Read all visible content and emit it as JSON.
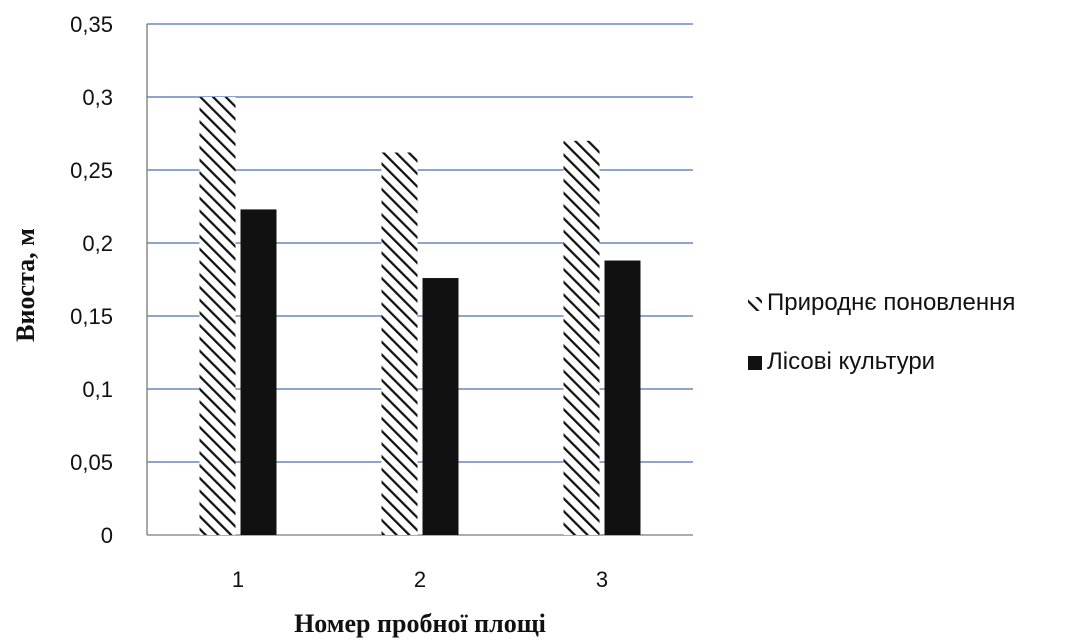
{
  "chart_data": {
    "type": "bar",
    "categories": [
      "1",
      "2",
      "3"
    ],
    "series": [
      {
        "name": "Природнє поновлення",
        "values": [
          0.3,
          0.262,
          0.27
        ],
        "pattern": "diagonal-hatch",
        "color": "#111111"
      },
      {
        "name": "Лісові культури",
        "values": [
          0.223,
          0.176,
          0.188
        ],
        "pattern": "solid",
        "color": "#111111"
      }
    ],
    "xlabel": "Номер пробної площі",
    "ylabel": "Виоста, м",
    "ylim": [
      0,
      0.35
    ],
    "yticks": [
      0,
      0.05,
      0.1,
      0.15,
      0.2,
      0.25,
      0.3,
      0.35
    ],
    "ytick_labels": [
      "0",
      "0,05",
      "0,1",
      "0,15",
      "0,2",
      "0,25",
      "0,3",
      "0,35"
    ],
    "grid": true,
    "grid_color": "#4a72b0",
    "legend_position": "right"
  }
}
